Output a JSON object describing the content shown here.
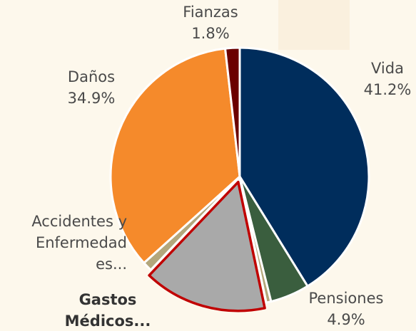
{
  "chart_data": {
    "type": "pie",
    "categories": [
      "Vida",
      "Pensiones",
      null,
      "Gastos\nMédicos...",
      "Accidentes y\nEnfermedad\nes...",
      "Daños",
      "Fianzas"
    ],
    "values": [
      41.2,
      4.9,
      0.6,
      15.4,
      1.2,
      34.9,
      1.8
    ],
    "value_labels": [
      "41.2%",
      "4.9%",
      null,
      null,
      null,
      "34.9%",
      "1.8%"
    ],
    "colors": [
      "#002d5c",
      "#3a5e3e",
      "#b5a77a",
      "#a9a9a9",
      "#b3a77c",
      "#f58a2b",
      "#6b0000"
    ],
    "highlight_color": "#c00000"
  }
}
